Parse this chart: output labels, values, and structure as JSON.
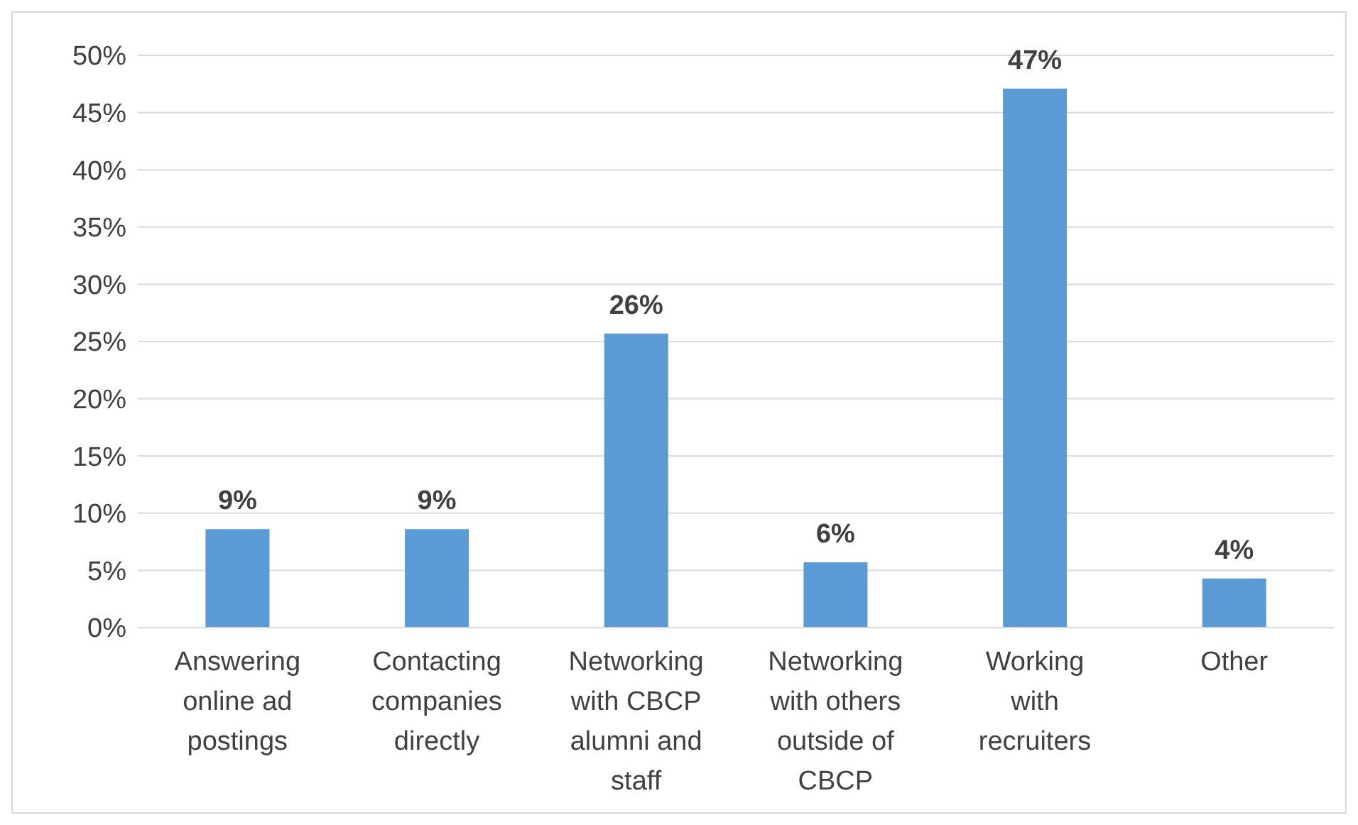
{
  "chart_data": {
    "type": "bar",
    "categories": [
      "Answering online ad postings",
      "Contacting companies directly",
      "Networking with CBCP alumni and staff",
      "Networking with others outside of CBCP",
      "Working with recruiters",
      "Other"
    ],
    "values": [
      8.6,
      8.6,
      25.7,
      5.7,
      47.1,
      4.3
    ],
    "value_labels": [
      "9%",
      "9%",
      "26%",
      "6%",
      "47%",
      "4%"
    ],
    "color": "#5b9bd5",
    "ylim": [
      0,
      50
    ],
    "yticks": [
      {
        "value": 0,
        "label": "0%"
      },
      {
        "value": 5,
        "label": "5%"
      },
      {
        "value": 10,
        "label": "10%"
      },
      {
        "value": 15,
        "label": "15%"
      },
      {
        "value": 20,
        "label": "20%"
      },
      {
        "value": 25,
        "label": "25%"
      },
      {
        "value": 30,
        "label": "30%"
      },
      {
        "value": 35,
        "label": "35%"
      },
      {
        "value": 40,
        "label": "40%"
      },
      {
        "value": 45,
        "label": "45%"
      },
      {
        "value": 50,
        "label": "50%"
      }
    ],
    "grid": "y"
  }
}
